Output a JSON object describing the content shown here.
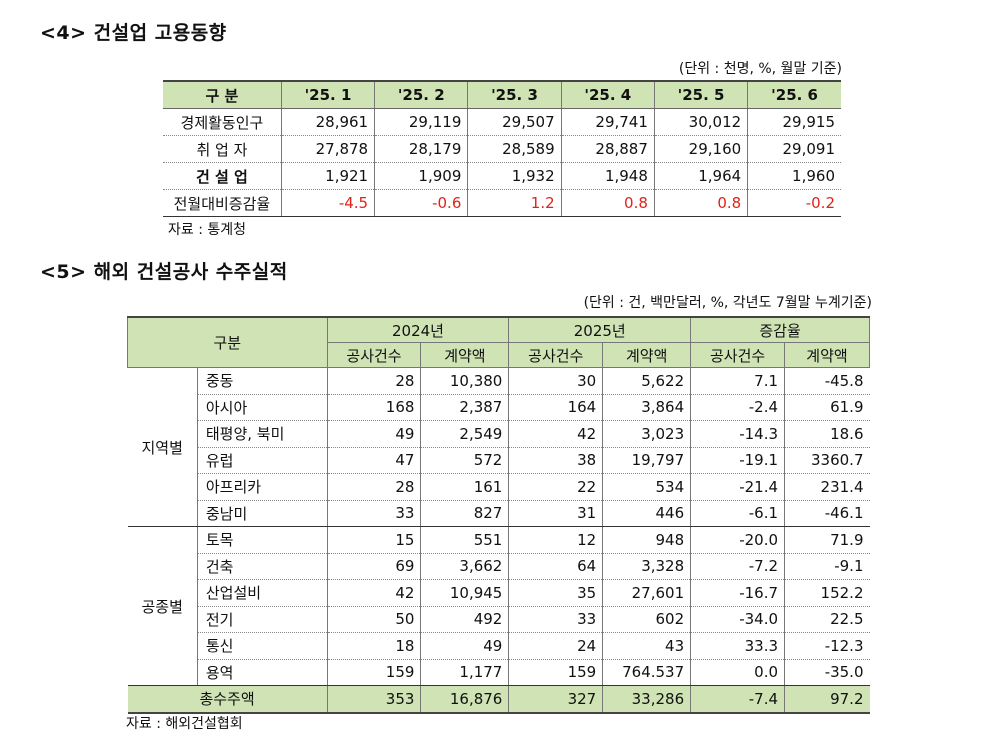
{
  "section4": {
    "title": "<4> 건설업 고용동향",
    "unit": "(단위 : 천명, %, 월말 기준)",
    "headers": [
      "구 분",
      "'25. 1",
      "'25. 2",
      "'25. 3",
      "'25. 4",
      "'25. 5",
      "'25. 6"
    ],
    "rows": [
      {
        "label": "경제활동인구",
        "values": [
          "28,961",
          "29,119",
          "29,507",
          "29,741",
          "30,012",
          "29,915"
        ]
      },
      {
        "label": "취 업 자",
        "values": [
          "27,878",
          "28,179",
          "28,589",
          "28,887",
          "29,160",
          "29,091"
        ]
      },
      {
        "label": "건 설 업",
        "values": [
          "1,921",
          "1,909",
          "1,932",
          "1,948",
          "1,964",
          "1,960"
        ]
      },
      {
        "label": "전월대비증감율",
        "values": [
          "-4.5",
          "-0.6",
          "1.2",
          "0.8",
          "0.8",
          "-0.2"
        ]
      }
    ],
    "source": "자료 : 통계청",
    "highlight_color": "#e0231a"
  },
  "section5": {
    "title": "<5> 해외 건설공사 수주실적",
    "unit": "(단위 : 건, 백만달러, %, 각년도 7월말 누계기준)",
    "header": {
      "col0": "구분",
      "y2024": "2024년",
      "y2025": "2025년",
      "change": "증감율",
      "count": "공사건수",
      "amount": "계약액"
    },
    "region_group": "지역별",
    "region_rows": [
      {
        "item": "중동",
        "values": [
          "28",
          "10,380",
          "30",
          "5,622",
          "7.1",
          "-45.8"
        ]
      },
      {
        "item": "아시아",
        "values": [
          "168",
          "2,387",
          "164",
          "3,864",
          "-2.4",
          "61.9"
        ]
      },
      {
        "item": "태평양, 북미",
        "values": [
          "49",
          "2,549",
          "42",
          "3,023",
          "-14.3",
          "18.6"
        ]
      },
      {
        "item": "유럽",
        "values": [
          "47",
          "572",
          "38",
          "19,797",
          "-19.1",
          "3360.7"
        ]
      },
      {
        "item": "아프리카",
        "values": [
          "28",
          "161",
          "22",
          "534",
          "-21.4",
          "231.4"
        ]
      },
      {
        "item": "중남미",
        "values": [
          "33",
          "827",
          "31",
          "446",
          "-6.1",
          "-46.1"
        ]
      }
    ],
    "type_group": "공종별",
    "type_rows": [
      {
        "item": "토목",
        "values": [
          "15",
          "551",
          "12",
          "948",
          "-20.0",
          "71.9"
        ]
      },
      {
        "item": "건축",
        "values": [
          "69",
          "3,662",
          "64",
          "3,328",
          "-7.2",
          "-9.1"
        ]
      },
      {
        "item": "산업설비",
        "values": [
          "42",
          "10,945",
          "35",
          "27,601",
          "-16.7",
          "152.2"
        ]
      },
      {
        "item": "전기",
        "values": [
          "50",
          "492",
          "33",
          "602",
          "-34.0",
          "22.5"
        ]
      },
      {
        "item": "통신",
        "values": [
          "18",
          "49",
          "24",
          "43",
          "33.3",
          "-12.3"
        ]
      },
      {
        "item": "용역",
        "values": [
          "159",
          "1,177",
          "159",
          "764.537",
          "0.0",
          "-35.0"
        ]
      }
    ],
    "total": {
      "label": "총수주액",
      "values": [
        "353",
        "16,876",
        "327",
        "33,286",
        "-7.4",
        "97.2"
      ]
    },
    "source": "자료 : 해외건설협회"
  }
}
